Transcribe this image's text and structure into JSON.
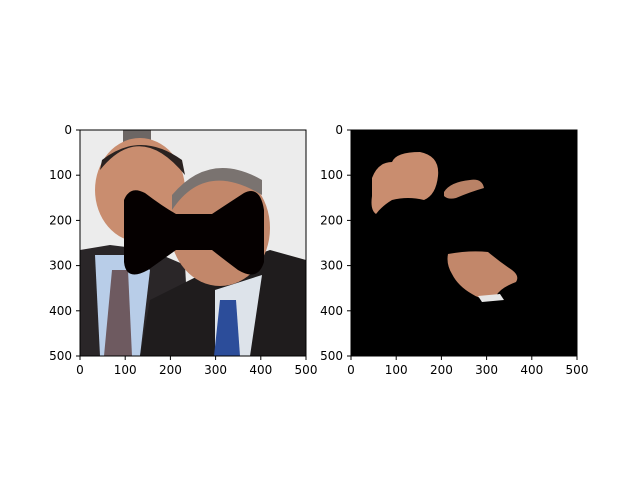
{
  "figure": {
    "panels": [
      {
        "name": "original-photo",
        "content": "two smiling men in suits with a black bow-tie shaped mask over the center",
        "x_ticks": [
          "0",
          "100",
          "200",
          "300",
          "400",
          "500"
        ],
        "y_ticks": [
          "0",
          "100",
          "200",
          "300",
          "400",
          "500"
        ]
      },
      {
        "name": "masked-skin-region",
        "content": "black background with segmented skin fragments of the faces",
        "x_ticks": [
          "0",
          "100",
          "200",
          "300",
          "400",
          "500"
        ],
        "y_ticks": [
          "0",
          "100",
          "200",
          "300",
          "400",
          "500"
        ]
      }
    ],
    "colors": {
      "mask": "#050000",
      "background_dark": "#000000",
      "skin": "#c98d6f",
      "suit": "#1f1c1d",
      "shirt": "#b8cde8",
      "tie_left": "#6e5a60",
      "tie_right": "#2c4d9a",
      "wall": "#ececec"
    }
  }
}
